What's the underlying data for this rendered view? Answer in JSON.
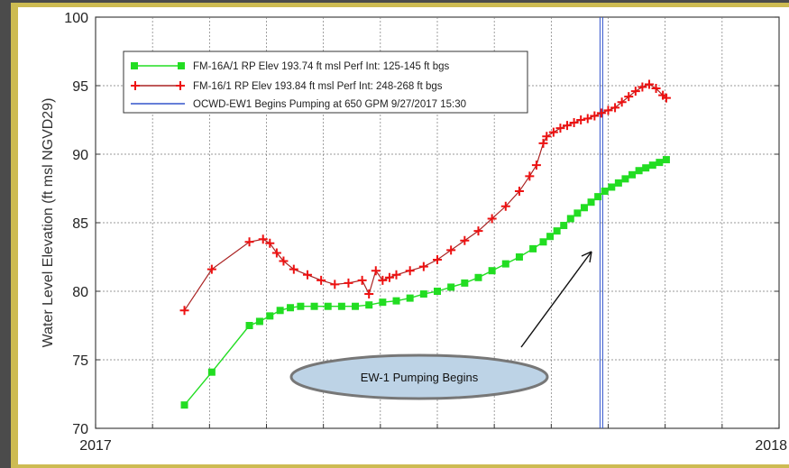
{
  "chart_data": {
    "type": "line",
    "ylabel": "Water Level Elevation (ft msl NGVD29)",
    "xlabel": "",
    "ylim": [
      70,
      100
    ],
    "xlim": [
      0,
      1
    ],
    "yticks": [
      70,
      75,
      80,
      85,
      90,
      95,
      100
    ],
    "xtick_labels": [
      {
        "x": 0,
        "label": "2017"
      },
      {
        "x": 1,
        "label": "2018"
      }
    ],
    "grid": true,
    "legend_position": "top-left",
    "series": [
      {
        "name": "FM-16A/1 RP Elev 193.74 ft msl Perf Int:  125-145 ft bgs",
        "color": "#22dd22",
        "marker": "square",
        "x_fraction_of_year": [
          0.13,
          0.17,
          0.225,
          0.24,
          0.255,
          0.27,
          0.285,
          0.3,
          0.32,
          0.34,
          0.36,
          0.38,
          0.4,
          0.42,
          0.44,
          0.46,
          0.48,
          0.5,
          0.52,
          0.54,
          0.56,
          0.58,
          0.6,
          0.62,
          0.64,
          0.655,
          0.665,
          0.675,
          0.685,
          0.695,
          0.705,
          0.715,
          0.725,
          0.735,
          0.745,
          0.755,
          0.765,
          0.775,
          0.785,
          0.795,
          0.805,
          0.815,
          0.825,
          0.835
        ],
        "y": [
          71.7,
          74.1,
          77.5,
          77.8,
          78.2,
          78.6,
          78.8,
          78.9,
          78.9,
          78.9,
          78.9,
          78.9,
          79.0,
          79.2,
          79.3,
          79.5,
          79.8,
          80.0,
          80.3,
          80.6,
          81.0,
          81.5,
          82.0,
          82.5,
          83.1,
          83.6,
          84.0,
          84.4,
          84.8,
          85.3,
          85.7,
          86.1,
          86.5,
          86.9,
          87.3,
          87.6,
          87.9,
          88.2,
          88.5,
          88.8,
          89.0,
          89.2,
          89.4,
          89.6
        ]
      },
      {
        "name": "FM-16/1 RP Elev 193.84 ft msl Perf Int:  248-268 ft bgs",
        "color": "#ee1111",
        "marker": "plus",
        "x_fraction_of_year": [
          0.13,
          0.17,
          0.225,
          0.245,
          0.255,
          0.265,
          0.275,
          0.29,
          0.31,
          0.33,
          0.35,
          0.37,
          0.39,
          0.4,
          0.41,
          0.42,
          0.43,
          0.44,
          0.46,
          0.48,
          0.5,
          0.52,
          0.54,
          0.56,
          0.58,
          0.6,
          0.62,
          0.635,
          0.645,
          0.655,
          0.66,
          0.67,
          0.68,
          0.69,
          0.7,
          0.71,
          0.72,
          0.73,
          0.74,
          0.75,
          0.76,
          0.77,
          0.78,
          0.79,
          0.8,
          0.81,
          0.82,
          0.83,
          0.835
        ],
        "y": [
          78.6,
          81.6,
          83.6,
          83.8,
          83.5,
          82.8,
          82.2,
          81.6,
          81.2,
          80.8,
          80.5,
          80.6,
          80.8,
          79.8,
          81.5,
          80.8,
          81.0,
          81.2,
          81.5,
          81.8,
          82.3,
          83.0,
          83.7,
          84.4,
          85.3,
          86.2,
          87.3,
          88.4,
          89.2,
          90.8,
          91.3,
          91.6,
          91.9,
          92.1,
          92.3,
          92.5,
          92.6,
          92.8,
          93.0,
          93.2,
          93.4,
          93.8,
          94.2,
          94.6,
          94.9,
          95.1,
          94.8,
          94.3,
          94.1
        ]
      },
      {
        "name": "OCWD-EW1 Begins Pumping at 650 GPM 9/27/2017 15:30",
        "color": "#3355cc",
        "marker": "none",
        "vline_x_fraction_of_year": 0.74
      }
    ],
    "annotations": [
      {
        "text": "EW-1 Pumping Begins",
        "arrow_to": {
          "x_fraction_of_year": 0.73,
          "y": 83.6
        }
      }
    ]
  }
}
